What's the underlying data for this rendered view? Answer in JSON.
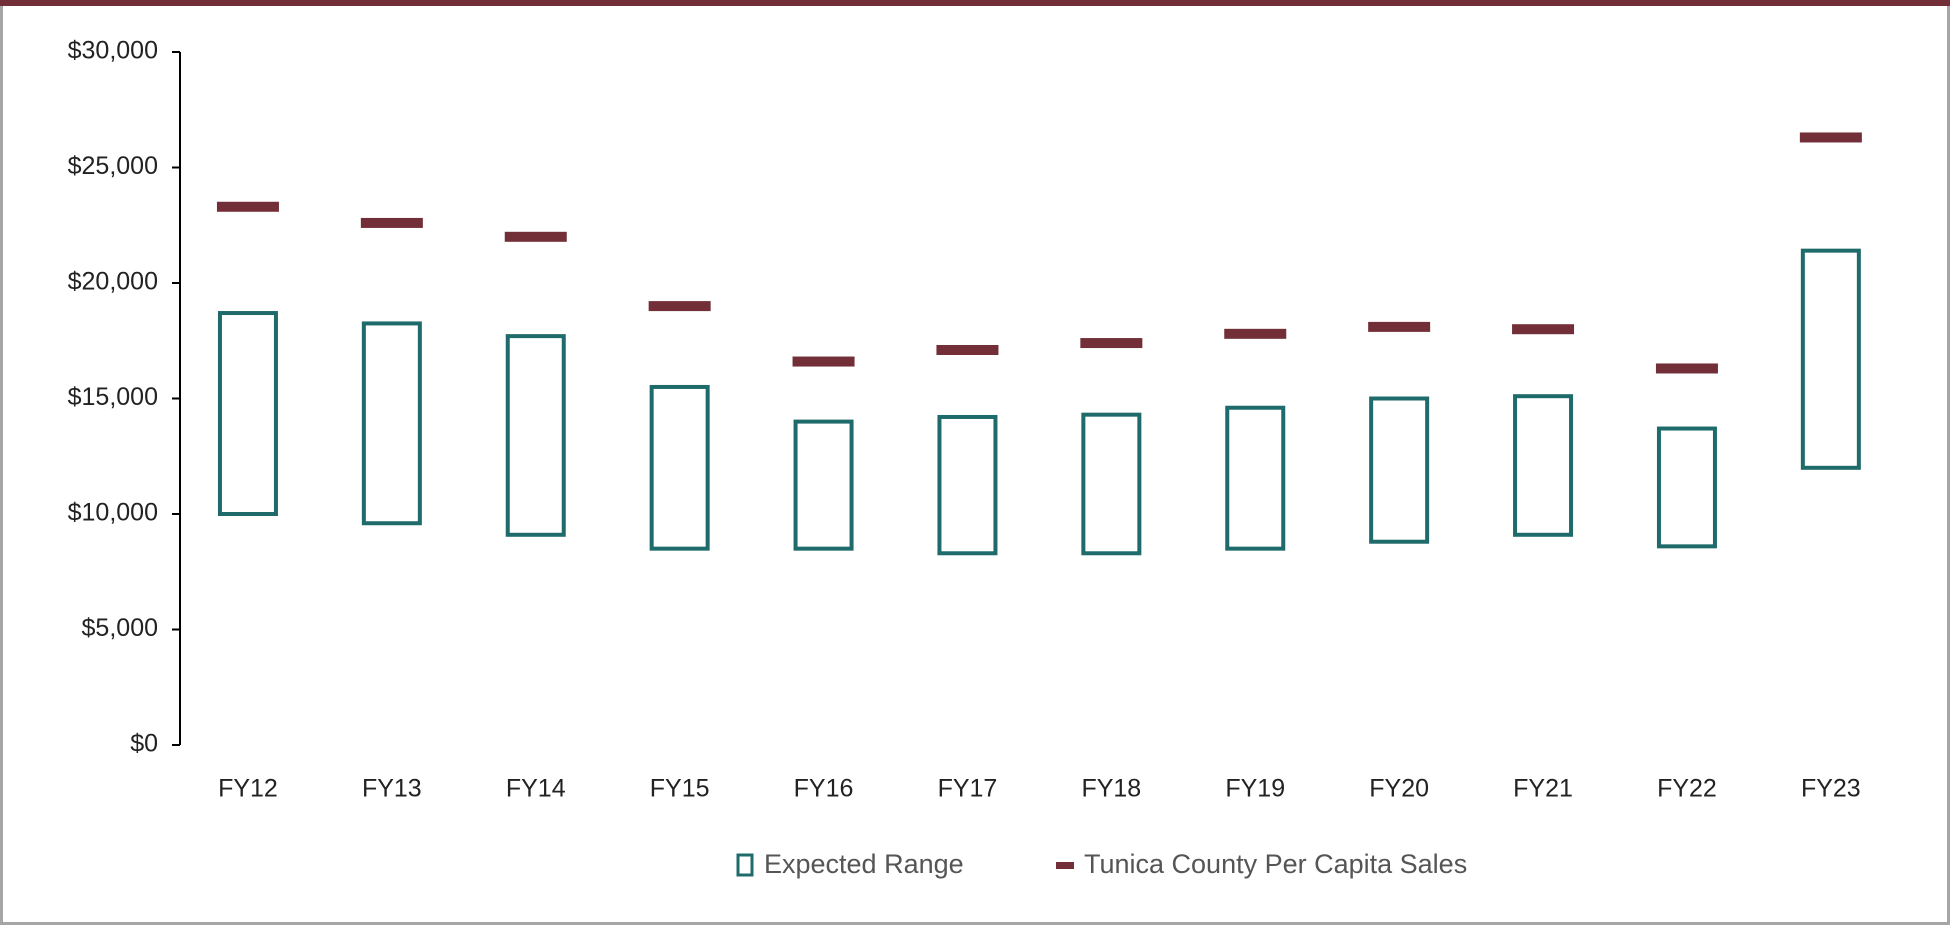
{
  "chart_data": {
    "type": "range",
    "categories": [
      "FY12",
      "FY13",
      "FY14",
      "FY15",
      "FY16",
      "FY17",
      "FY18",
      "FY19",
      "FY20",
      "FY21",
      "FY22",
      "FY23"
    ],
    "series": [
      {
        "name": "Expected Range",
        "color": "#1f6b6b",
        "low": [
          10000,
          9600,
          9100,
          8500,
          8500,
          8300,
          8300,
          8500,
          8800,
          9100,
          8600,
          12000
        ],
        "high": [
          18700,
          18250,
          17700,
          15500,
          14000,
          14200,
          14300,
          14600,
          15000,
          15100,
          13700,
          21400
        ]
      },
      {
        "name": "Tunica County Per Capita Sales",
        "color": "#722f37",
        "values": [
          23300,
          22600,
          22000,
          19000,
          16600,
          17100,
          17400,
          17800,
          18100,
          18000,
          16300,
          26300
        ]
      }
    ],
    "ylim": [
      0,
      30000
    ],
    "yticks": [
      {
        "value": 0,
        "label": "$0"
      },
      {
        "value": 5000,
        "label": "$5,000"
      },
      {
        "value": 10000,
        "label": "$10,000"
      },
      {
        "value": 15000,
        "label": "$15,000"
      },
      {
        "value": 20000,
        "label": "$20,000"
      },
      {
        "value": 25000,
        "label": "$25,000"
      },
      {
        "value": 30000,
        "label": "$30,000"
      }
    ],
    "legend": "bottom"
  }
}
